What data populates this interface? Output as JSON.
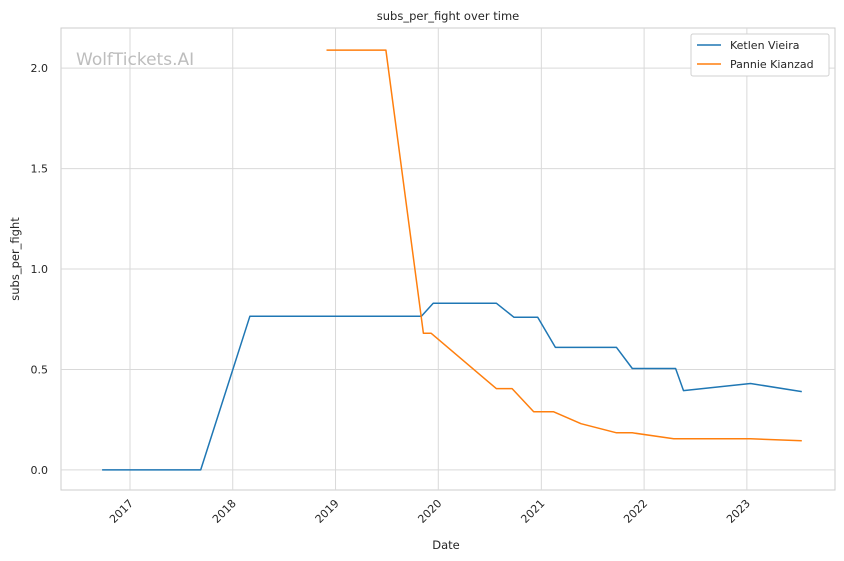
{
  "watermark": "WolfTickets.AI",
  "chart_data": {
    "type": "line",
    "title": "subs_per_fight over time",
    "xlabel": "Date",
    "ylabel": "subs_per_fight",
    "x_type": "date",
    "xlim": [
      "2016-05-01",
      "2023-11-10"
    ],
    "ylim": [
      -0.1,
      2.2
    ],
    "x_ticks": [
      "2017",
      "2018",
      "2019",
      "2020",
      "2021",
      "2022",
      "2023"
    ],
    "y_ticks": [
      "0.0",
      "0.5",
      "1.0",
      "1.5",
      "2.0"
    ],
    "y_tick_values": [
      0,
      0.5,
      1.0,
      1.5,
      2.0
    ],
    "grid": true,
    "legend_position": "top-right",
    "series": [
      {
        "name": "Ketlen Vieira",
        "color": "#1f77b4",
        "points": [
          [
            "2016-09-24",
            0.0
          ],
          [
            "2017-09-09",
            0.0
          ],
          [
            "2018-03-03",
            0.765
          ],
          [
            "2019-11-02",
            0.765
          ],
          [
            "2019-12-14",
            0.83
          ],
          [
            "2020-07-25",
            0.83
          ],
          [
            "2020-09-26",
            0.76
          ],
          [
            "2020-12-19",
            0.76
          ],
          [
            "2021-02-20",
            0.61
          ],
          [
            "2021-09-25",
            0.61
          ],
          [
            "2021-11-20",
            0.505
          ],
          [
            "2022-04-23",
            0.505
          ],
          [
            "2022-05-21",
            0.395
          ],
          [
            "2023-01-14",
            0.43
          ],
          [
            "2023-07-15",
            0.39
          ]
        ]
      },
      {
        "name": "Pannie Kianzad",
        "color": "#ff7f0e",
        "points": [
          [
            "2018-11-30",
            2.09
          ],
          [
            "2019-06-29",
            2.09
          ],
          [
            "2019-11-09",
            0.68
          ],
          [
            "2019-12-07",
            0.68
          ],
          [
            "2020-07-25",
            0.405
          ],
          [
            "2020-09-19",
            0.405
          ],
          [
            "2020-12-05",
            0.29
          ],
          [
            "2021-02-13",
            0.29
          ],
          [
            "2021-05-22",
            0.23
          ],
          [
            "2021-09-25",
            0.185
          ],
          [
            "2021-11-20",
            0.185
          ],
          [
            "2022-04-16",
            0.155
          ],
          [
            "2023-01-14",
            0.155
          ],
          [
            "2023-07-15",
            0.145
          ]
        ]
      }
    ]
  }
}
